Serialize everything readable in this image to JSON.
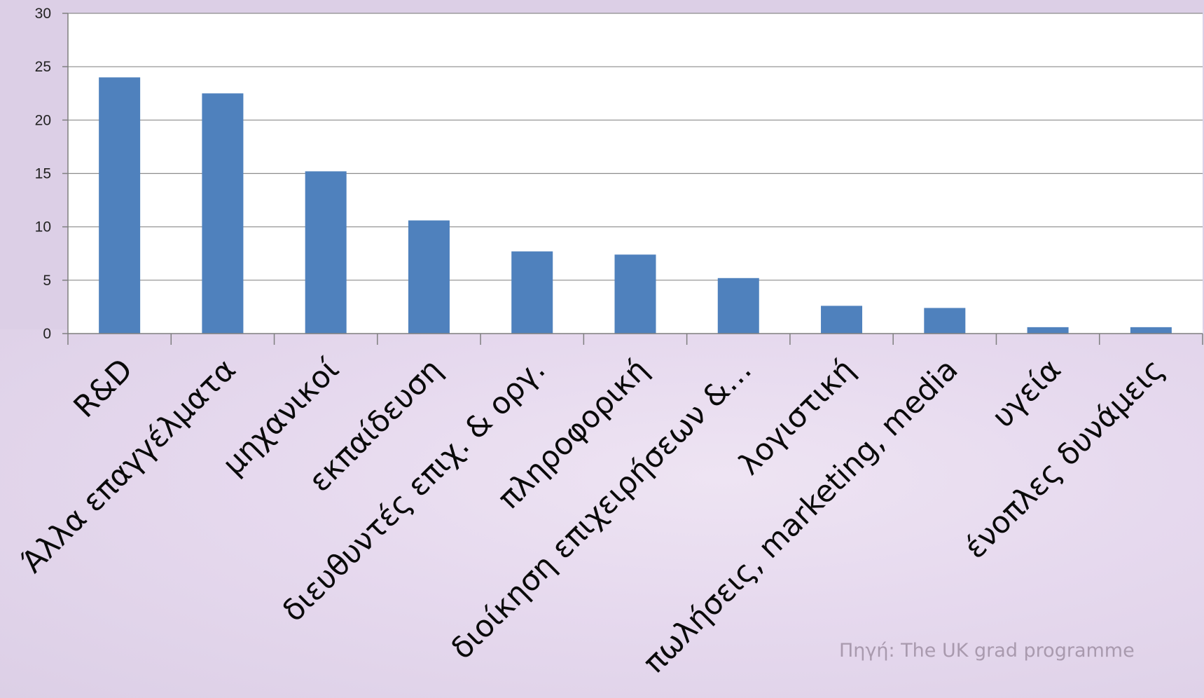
{
  "chart_data": {
    "type": "bar",
    "title": "",
    "xlabel": "",
    "ylabel": "",
    "categories": [
      "R&D",
      "Άλλα επαγγέλματα",
      "μηχανικοί",
      "εκπαίδευση",
      "διευθυντές επιχ. & οργ.",
      "πληροφορική",
      "διοίκηση επιχειρήσεων &…",
      "λογιστική",
      "πωλήσεις, marketing, media",
      "υγεία",
      "ένοπλες δυνάμεις"
    ],
    "values": [
      24,
      22.5,
      15.2,
      10.6,
      7.7,
      7.4,
      5.2,
      2.6,
      2.4,
      0.6,
      0.6
    ],
    "ylim": [
      0,
      30
    ],
    "yticks": [
      0,
      5,
      10,
      15,
      20,
      25,
      30
    ],
    "grid": true,
    "bar_color": "#4f81bd"
  },
  "source_note": "Πηγή: The UK grad programme"
}
